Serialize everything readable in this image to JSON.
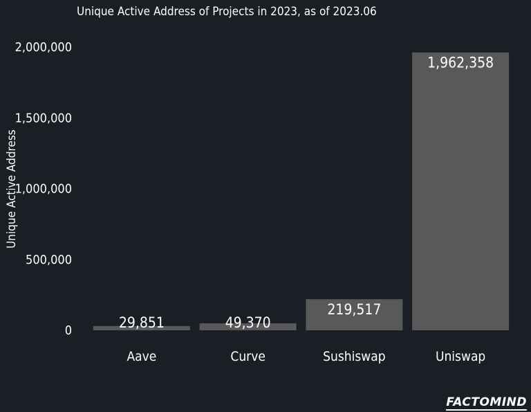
{
  "chart_data": {
    "type": "bar",
    "title": "Unique Active Address of Projects in 2023, as of 2023.06",
    "xlabel": "",
    "ylabel": "Unique Active Address",
    "categories": [
      "Aave",
      "Curve",
      "Sushiswap",
      "Uniswap"
    ],
    "values": [
      29851,
      49370,
      219517,
      1962358
    ],
    "value_labels": [
      "29,851",
      "49,370",
      "219,517",
      "1,962,358"
    ],
    "ylim": [
      0,
      2000000
    ],
    "yticks": [
      0,
      500000,
      1000000,
      1500000,
      2000000
    ],
    "ytick_labels": [
      "0",
      "500,000",
      "1,000,000",
      "1,500,000",
      "2,000,000"
    ],
    "grid": false,
    "legend": "none",
    "colors": {
      "background": "#1a1f26",
      "bar": "#595959",
      "text": "#ffffff"
    }
  },
  "brand": {
    "logo_text": "FACTOMIND"
  }
}
